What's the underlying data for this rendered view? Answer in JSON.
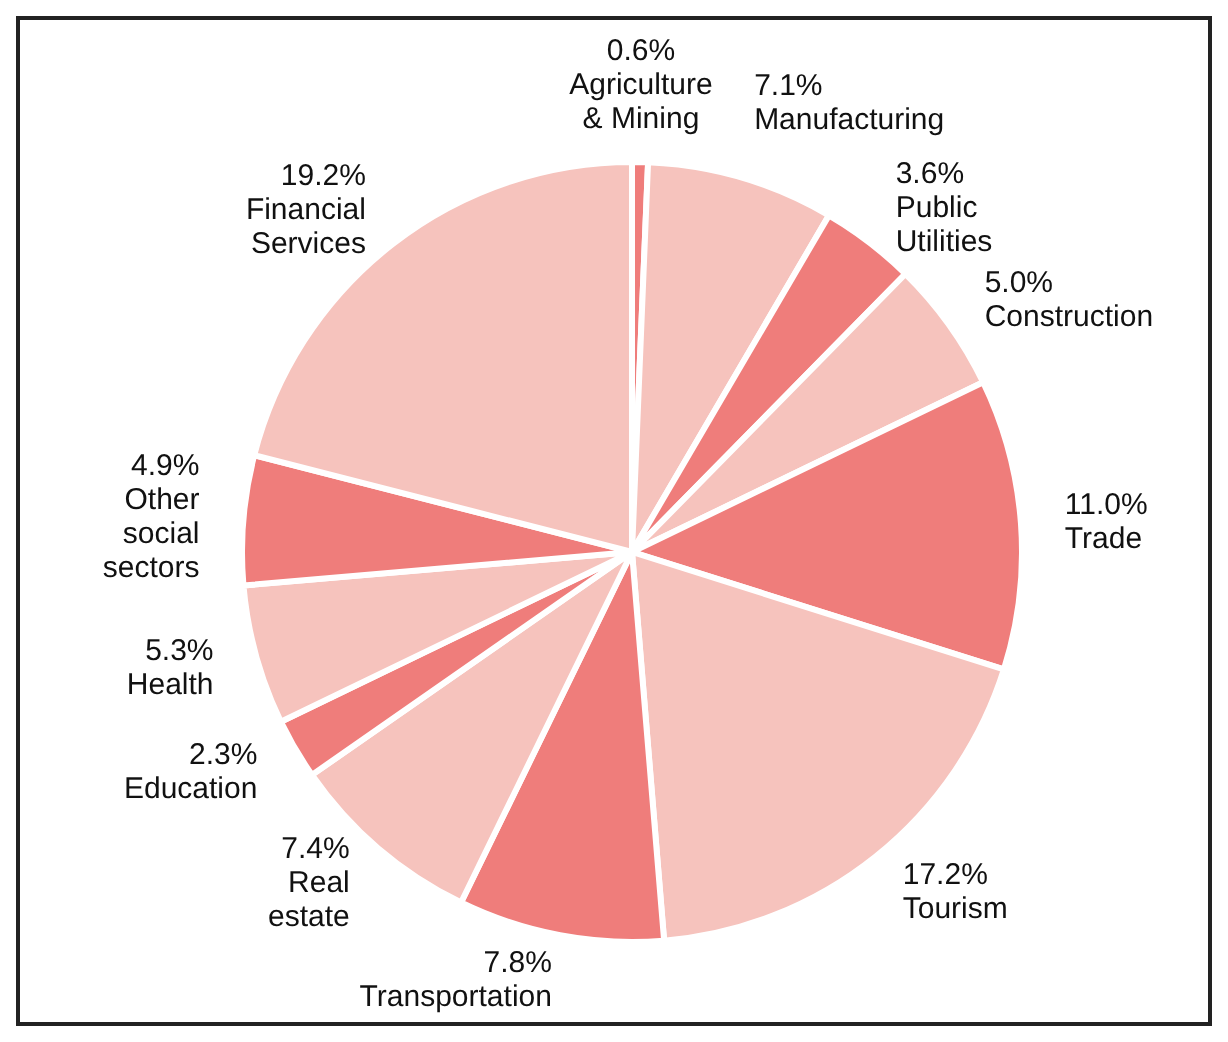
{
  "chart_data": {
    "type": "pie",
    "categories": [
      "Agriculture & Mining",
      "Manufacturing",
      "Public Utilities",
      "Construction",
      "Trade",
      "Tourism",
      "Transportation",
      "Real estate",
      "Education",
      "Health",
      "Other social sectors",
      "Financial Services"
    ],
    "values": [
      0.6,
      7.1,
      3.6,
      5.0,
      11.0,
      17.2,
      7.8,
      7.4,
      2.3,
      5.3,
      4.9,
      19.2
    ],
    "value_labels": [
      "0.6%",
      "7.1%",
      "3.6%",
      "5.0%",
      "11.0%",
      "17.2%",
      "7.8%",
      "7.4%",
      "2.3%",
      "5.3%",
      "4.9%",
      "19.2%"
    ],
    "colors": [
      "#ef7d7b",
      "#f6c3bd",
      "#ef7d7b",
      "#f6c3bd",
      "#ef7d7b",
      "#f6c3bd",
      "#ef7d7b",
      "#f6c3bd",
      "#ef7d7b",
      "#f6c3bd",
      "#ef7d7b",
      "#f6c3bd"
    ]
  }
}
